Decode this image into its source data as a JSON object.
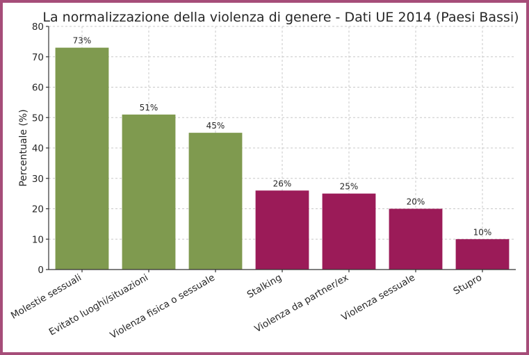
{
  "chart_data": {
    "type": "bar",
    "title": "La normalizzazione della violenza di genere - Dati UE 2014 (Paesi Bassi)",
    "xlabel": "",
    "ylabel": "Percentuale (%)",
    "ylim": [
      0,
      80
    ],
    "yticks": [
      "0",
      "10",
      "20",
      "30",
      "40",
      "50",
      "60",
      "70",
      "80"
    ],
    "grid": true,
    "categories": [
      "Molestie sessuali",
      "Evitato luoghi/situazioni",
      "Violenza fisica o sessuale",
      "Stalking",
      "Violenza da partner/ex",
      "Violenza sessuale",
      "Stupro"
    ],
    "values": [
      73,
      51,
      45,
      26,
      25,
      20,
      10
    ],
    "value_labels": [
      "73%",
      "51%",
      "45%",
      "26%",
      "25%",
      "20%",
      "10%"
    ],
    "bar_colors": [
      "#7f9a4f",
      "#7f9a4f",
      "#7f9a4f",
      "#9b1b58",
      "#9b1b58",
      "#9b1b58",
      "#9b1b58"
    ]
  }
}
